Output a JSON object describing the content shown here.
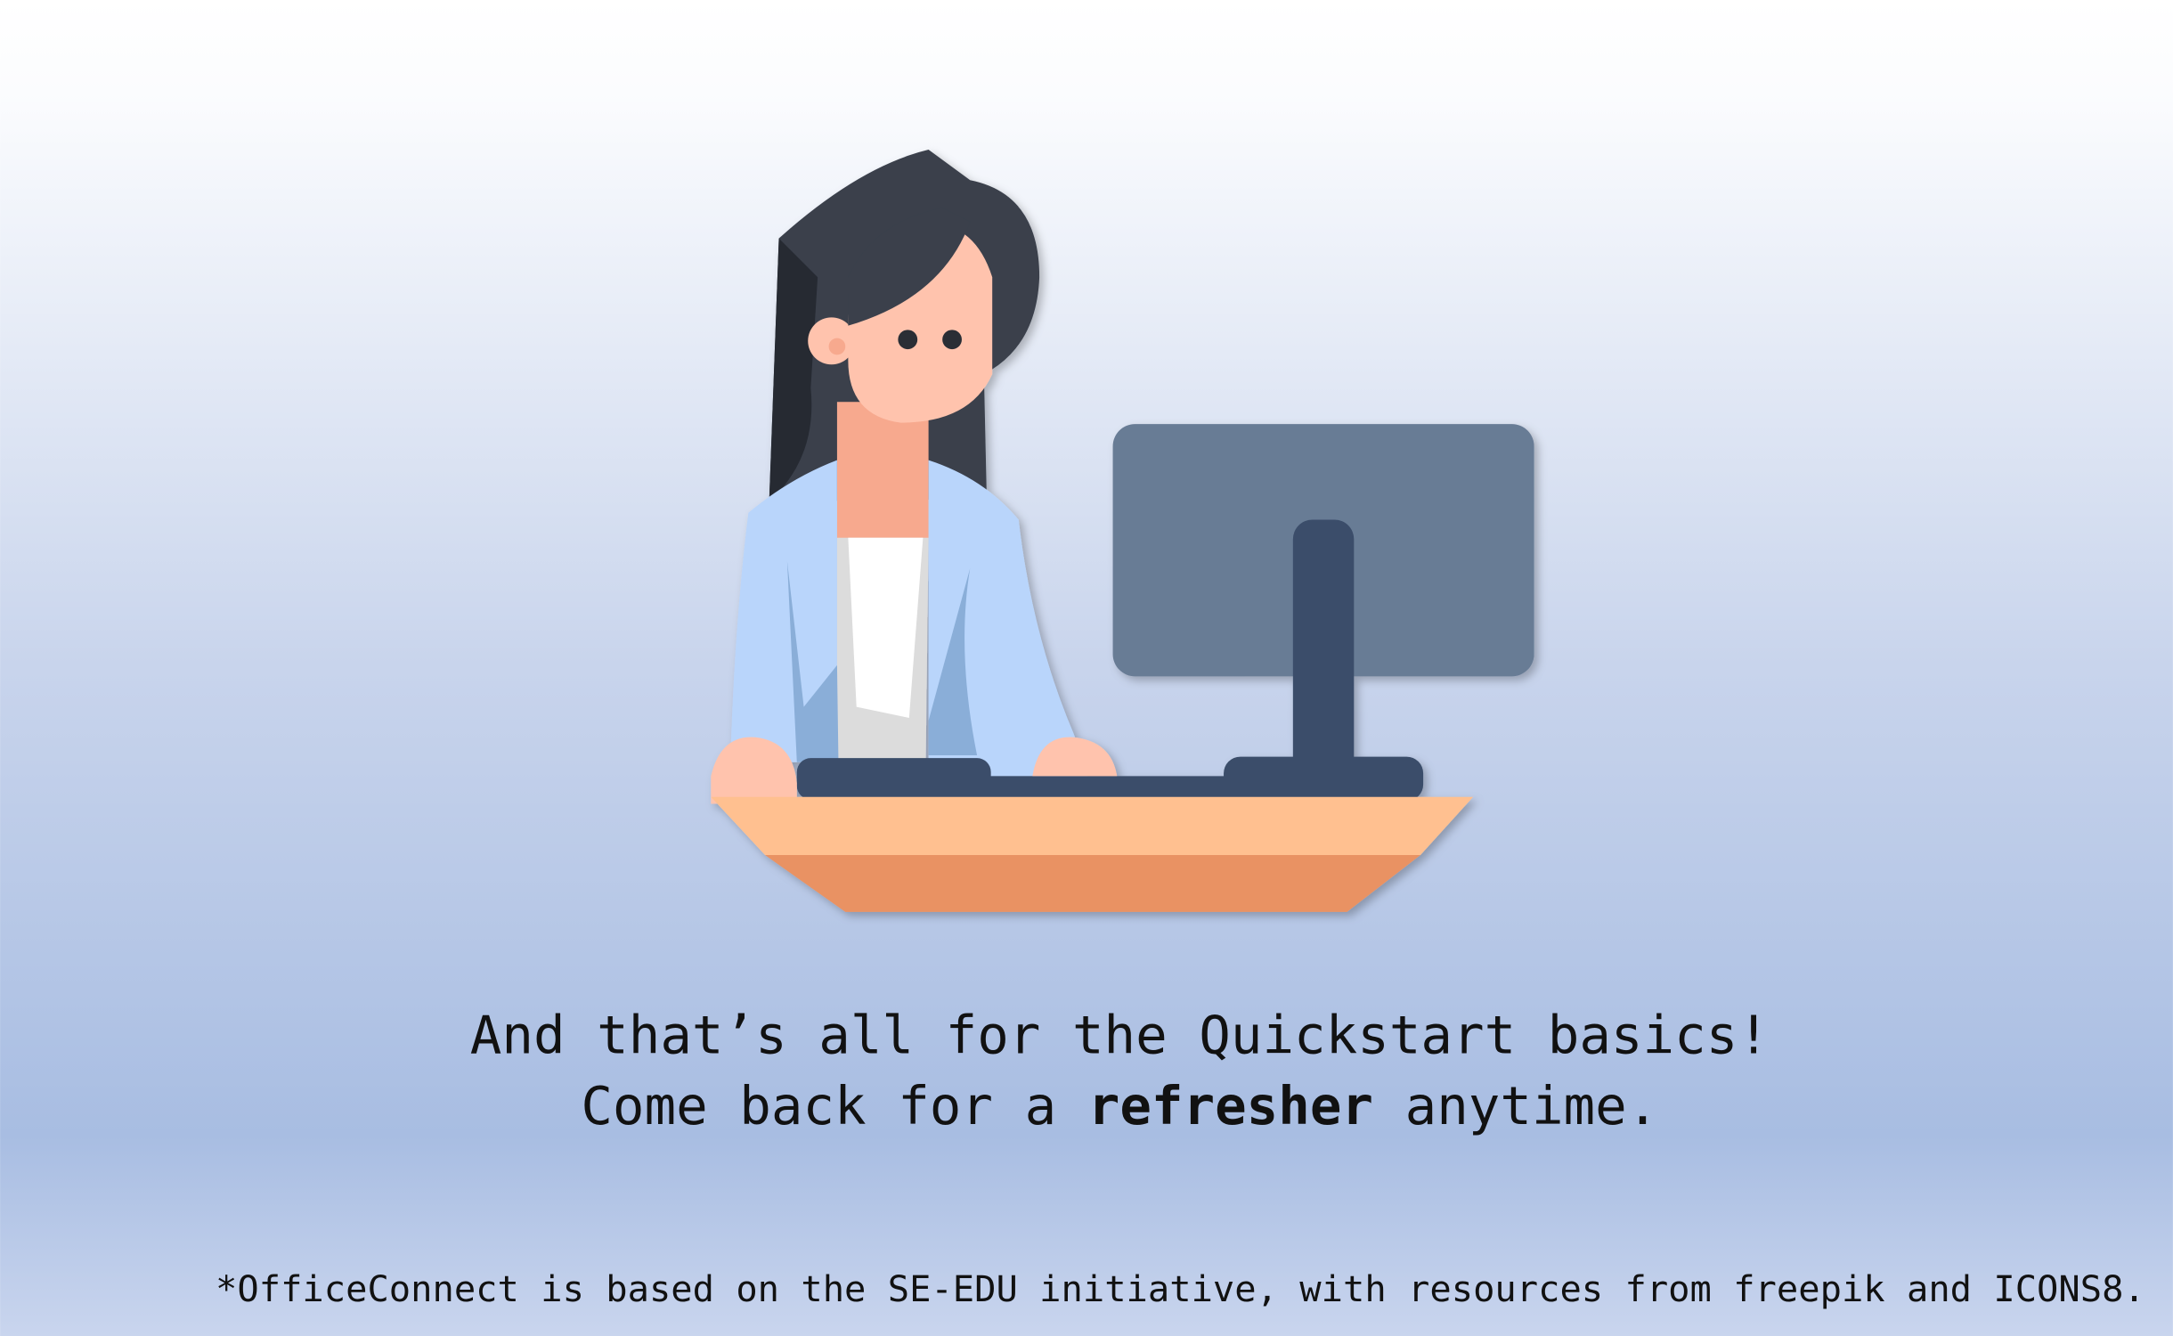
{
  "message": {
    "line1": "And that’s all for the Quickstart basics!",
    "line2_before": "Come back for a ",
    "line2_bold": "refresher",
    "line2_after": " anytime."
  },
  "footnote": "*OfficeConnect is based on the SE-EDU initiative, with resources from freepik and ICONS8."
}
